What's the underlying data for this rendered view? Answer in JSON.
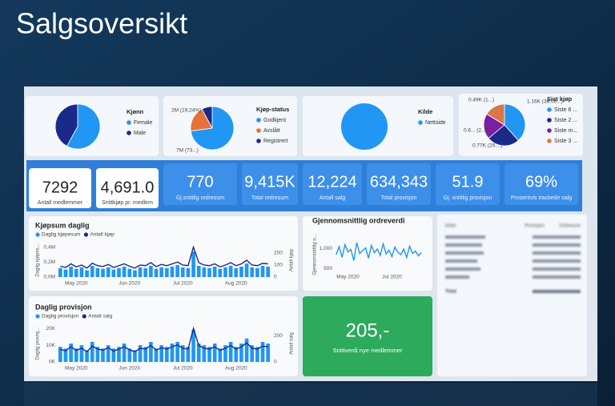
{
  "header": {
    "title": "Salgsoversikt"
  },
  "chart_data": [
    {
      "type": "pie",
      "legend_title": "Kjønn",
      "categories": [
        "Female",
        "Male"
      ],
      "values": [
        58,
        42
      ],
      "colors": [
        "#2196f3",
        "#1a2a8a"
      ]
    },
    {
      "type": "pie",
      "legend_title": "Kjøp-status",
      "categories": [
        "Godkjent",
        "Avslått",
        "Registrert"
      ],
      "values": [
        7.4,
        1.95,
        0.8
      ],
      "value_labels": [
        "7M (73...)",
        "2M (19.24%)",
        null
      ],
      "colors": [
        "#2196f3",
        "#e8703a",
        "#1a2a8a"
      ]
    },
    {
      "type": "pie",
      "legend_title": "Kilde",
      "categories": [
        "Nettside"
      ],
      "values": [
        100
      ],
      "colors": [
        "#2196f3"
      ]
    },
    {
      "type": "pie",
      "legend_title": "Sist kjøp",
      "categories": [
        "Siste 6 ...",
        "Siste 2 ...",
        "Siste m...",
        "Siste 3 ..."
      ],
      "values": [
        1.16,
        0.77,
        0.6,
        0.49
      ],
      "value_labels": [
        "1.16K (38.06...)",
        "0.77K (25....)",
        "0.6... (2...)",
        "0.49K (1...)"
      ],
      "colors": [
        "#2196f3",
        "#1a2a8a",
        "#7b1fa2",
        "#d9774a"
      ]
    },
    {
      "type": "bar",
      "title": "Kjøpsum daglig",
      "y_label": "Daglig kjøpes...",
      "y2_label": "Antall kjøp",
      "categories": [
        null,
        null,
        null,
        "May 2020",
        null,
        null,
        null,
        null,
        null,
        null,
        null,
        null,
        null,
        "Jun 2020",
        null,
        null,
        null,
        null,
        null,
        null,
        null,
        null,
        null,
        "Jul 2020",
        null,
        null,
        null,
        null,
        null,
        null,
        null,
        null,
        null,
        "Aug 2020",
        null,
        null,
        null,
        null,
        null,
        null
      ],
      "ylim": [
        0,
        0.45
      ],
      "yticks": [
        {
          "value": 0,
          "label": "0,0M"
        },
        {
          "value": 0.2,
          "label": "0,2M"
        },
        {
          "value": 0.4,
          "label": "0,4M"
        }
      ],
      "y2lim": [
        0,
        280
      ],
      "y2ticks": [
        0,
        100,
        200
      ],
      "series": [
        {
          "name": "Daglig kjøpesum",
          "type": "bar",
          "color": "#2196f3",
          "values": [
            0.12,
            0.1,
            0.14,
            0.11,
            0.13,
            0.09,
            0.15,
            0.12,
            0.11,
            0.13,
            0.1,
            0.12,
            0.14,
            0.11,
            0.09,
            0.13,
            0.12,
            0.15,
            0.11,
            0.13,
            0.12,
            0.14,
            0.16,
            0.13,
            0.12,
            0.34,
            0.15,
            0.13,
            0.12,
            0.14,
            0.11,
            0.13,
            0.15,
            0.12,
            0.14,
            0.18,
            0.13,
            0.12,
            0.15,
            0.14
          ]
        },
        {
          "name": "Antall kjøp",
          "type": "line",
          "axis": "y2",
          "color": "#1a2a8a",
          "values": [
            90,
            80,
            110,
            85,
            100,
            75,
            115,
            95,
            88,
            105,
            80,
            95,
            110,
            90,
            75,
            100,
            95,
            120,
            88,
            105,
            95,
            110,
            125,
            100,
            95,
            250,
            120,
            100,
            95,
            110,
            85,
            100,
            120,
            95,
            110,
            140,
            100,
            95,
            115,
            110
          ]
        }
      ]
    },
    {
      "type": "line",
      "title": "Gjennomsnittlig ordreverdi",
      "y_label": "Gjennomsnittlig o...",
      "categories": [
        null,
        null,
        null,
        null,
        "May 2020",
        null,
        null,
        null,
        null,
        null,
        null,
        null,
        null,
        null,
        null,
        null,
        null,
        null,
        null,
        "Jul 2020",
        null,
        null,
        null,
        null,
        null,
        null,
        null,
        null,
        null,
        null
      ],
      "ylim": [
        450,
        1250
      ],
      "yticks": [
        500,
        {
          "value": 1000,
          "label": "1,000"
        }
      ],
      "series": [
        {
          "name": "Gjennomsnittlig ordreverdi",
          "type": "line",
          "color": "#2196f3",
          "values": [
            850,
            1050,
            780,
            1100,
            920,
            980,
            700,
            1150,
            880,
            950,
            1020,
            760,
            1080,
            900,
            990,
            830,
            1120,
            870,
            960,
            800,
            1040,
            910,
            850,
            990,
            780,
            1060,
            880,
            940,
            820,
            900
          ]
        }
      ]
    },
    {
      "type": "bar",
      "title": "Daglig provisjon",
      "y_label": "Daglig provisj...",
      "y2_label": "Antall salg",
      "categories": [
        null,
        null,
        null,
        "May 2020",
        null,
        null,
        null,
        null,
        null,
        null,
        null,
        null,
        null,
        "Jun 2020",
        null,
        null,
        null,
        null,
        null,
        null,
        null,
        null,
        null,
        "Jul 2020",
        null,
        null,
        null,
        null,
        null,
        null,
        null,
        null,
        null,
        "Aug 2020",
        null,
        null,
        null,
        null,
        null,
        null
      ],
      "ylim": [
        0,
        22
      ],
      "yticks": [
        {
          "value": 0,
          "label": "0K"
        },
        {
          "value": 10,
          "label": "10K"
        },
        {
          "value": 20,
          "label": "20K"
        }
      ],
      "y2lim": [
        0,
        280
      ],
      "y2ticks": [
        0,
        200
      ],
      "series": [
        {
          "name": "Daglig provisjon",
          "type": "bar",
          "color": "#2196f3",
          "values": [
            9,
            8,
            11,
            8,
            10,
            7,
            12,
            9,
            8,
            10,
            8,
            9,
            11,
            8,
            7,
            10,
            9,
            12,
            8,
            10,
            9,
            11,
            12,
            10,
            9,
            19,
            11,
            10,
            9,
            11,
            8,
            10,
            12,
            9,
            11,
            14,
            10,
            9,
            12,
            11
          ]
        },
        {
          "name": "Antall salg",
          "type": "line",
          "axis": "y2",
          "color": "#1a2a8a",
          "values": [
            95,
            85,
            115,
            88,
            105,
            78,
            120,
            98,
            90,
            108,
            82,
            98,
            115,
            92,
            78,
            104,
            98,
            125,
            90,
            108,
            98,
            115,
            130,
            104,
            98,
            255,
            125,
            104,
            98,
            115,
            88,
            104,
            125,
            98,
            115,
            145,
            104,
            98,
            120,
            115
          ]
        }
      ]
    }
  ],
  "kpis": [
    {
      "value": "7292",
      "label": "Antall medlemmer"
    },
    {
      "value": "4,691.0",
      "label": "Snittkjøp pr. medlem"
    },
    {
      "value": "770",
      "label": "Gj.snittlig ordresum"
    },
    {
      "value": "9,415K",
      "label": "Total ordresum"
    },
    {
      "value": "12,224",
      "label": "Antall salg"
    },
    {
      "value": "634,343",
      "label": "Total provisjon"
    },
    {
      "value": "51.9",
      "label": "Gj. snittlig provisjon"
    },
    {
      "value": "69%",
      "label": "Prosentvis trackede salg"
    }
  ],
  "highlight": {
    "value": "205,-",
    "label": "Snittverdi nye medlemmer"
  },
  "table": {
    "headers": [
      "Kilde",
      "Provisjon",
      "Ordresum"
    ],
    "total": "Total"
  }
}
